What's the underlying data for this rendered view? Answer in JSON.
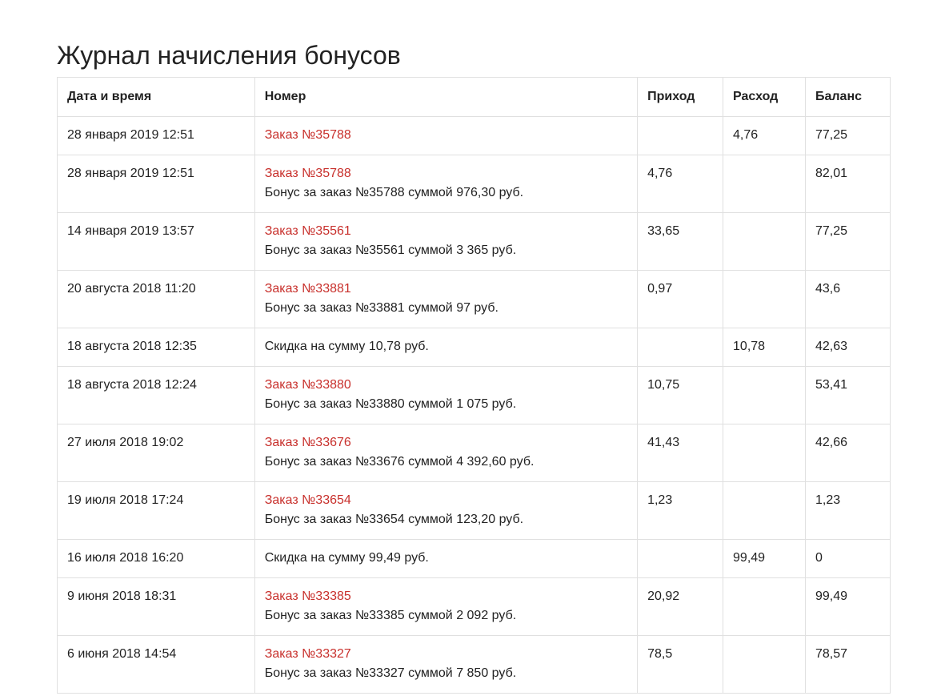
{
  "title": "Журнал начисления бонусов",
  "colors": {
    "link": "#c8302c",
    "border": "#e0e0e0"
  },
  "columns": [
    "Дата и время",
    "Номер",
    "Приход",
    "Расход",
    "Баланс"
  ],
  "rows": [
    {
      "date": "28 января 2019 12:51",
      "link": "Заказ №35788",
      "desc": "",
      "income": "",
      "expense": "4,76",
      "balance": "77,25"
    },
    {
      "date": "28 января 2019 12:51",
      "link": "Заказ №35788",
      "desc": "Бонус за заказ №35788 суммой 976,30 руб.",
      "income": "4,76",
      "expense": "",
      "balance": "82,01"
    },
    {
      "date": "14 января 2019 13:57",
      "link": "Заказ №35561",
      "desc": "Бонус за заказ №35561 суммой 3 365 руб.",
      "income": "33,65",
      "expense": "",
      "balance": "77,25"
    },
    {
      "date": "20 августа 2018 11:20",
      "link": "Заказ №33881",
      "desc": "Бонус за заказ №33881 суммой 97 руб.",
      "income": "0,97",
      "expense": "",
      "balance": "43,6"
    },
    {
      "date": "18 августа 2018 12:35",
      "link": "",
      "desc": "Скидка на сумму 10,78 руб.",
      "income": "",
      "expense": "10,78",
      "balance": "42,63"
    },
    {
      "date": "18 августа 2018 12:24",
      "link": "Заказ №33880",
      "desc": "Бонус за заказ №33880 суммой 1 075 руб.",
      "income": "10,75",
      "expense": "",
      "balance": "53,41"
    },
    {
      "date": "27 июля 2018 19:02",
      "link": "Заказ №33676",
      "desc": "Бонус за заказ №33676 суммой 4 392,60 руб.",
      "income": "41,43",
      "expense": "",
      "balance": "42,66"
    },
    {
      "date": "19 июля 2018 17:24",
      "link": "Заказ №33654",
      "desc": "Бонус за заказ №33654 суммой 123,20 руб.",
      "income": "1,23",
      "expense": "",
      "balance": "1,23"
    },
    {
      "date": "16 июля 2018 16:20",
      "link": "",
      "desc": "Скидка на сумму 99,49 руб.",
      "income": "",
      "expense": "99,49",
      "balance": "0"
    },
    {
      "date": "9 июня 2018 18:31",
      "link": "Заказ №33385",
      "desc": "Бонус за заказ №33385 суммой 2 092 руб.",
      "income": "20,92",
      "expense": "",
      "balance": "99,49"
    },
    {
      "date": "6 июня 2018 14:54",
      "link": "Заказ №33327",
      "desc": "Бонус за заказ №33327 суммой 7 850 руб.",
      "income": "78,5",
      "expense": "",
      "balance": "78,57"
    }
  ]
}
